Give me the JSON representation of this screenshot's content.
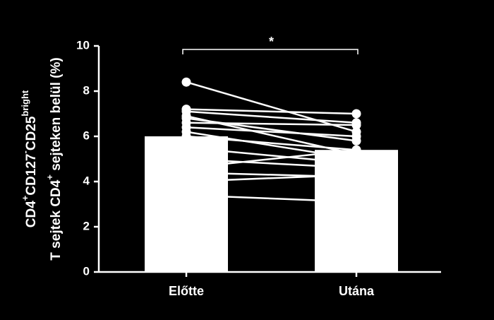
{
  "chart_data": {
    "type": "bar",
    "categories": [
      "Előtte",
      "Utána"
    ],
    "values": [
      6.0,
      5.4
    ],
    "color": "#ffffff",
    "paired_values": [
      [
        8.4,
        6.2
      ],
      [
        7.2,
        7.0
      ],
      [
        7.1,
        6.6
      ],
      [
        6.9,
        5.2
      ],
      [
        6.8,
        5.8
      ],
      [
        6.6,
        6.5
      ],
      [
        6.4,
        6.0
      ],
      [
        6.2,
        5.0
      ],
      [
        6.0,
        5.4
      ],
      [
        5.5,
        4.8
      ],
      [
        5.0,
        4.6
      ],
      [
        4.6,
        5.4
      ],
      [
        4.4,
        4.2
      ],
      [
        4.0,
        4.3
      ],
      [
        3.4,
        3.1
      ]
    ],
    "ylim": [
      0,
      10
    ],
    "yticks": [
      0,
      2,
      4,
      6,
      8,
      10
    ],
    "ylabel": [
      [
        {
          "text": "CD4"
        },
        {
          "sup": "+"
        },
        {
          "text": "CD127"
        },
        {
          "sup": "-"
        },
        {
          "text": "CD25"
        },
        {
          "sup": "bright"
        }
      ],
      [
        {
          "text": "T sejtek CD4"
        },
        {
          "sup": "+"
        },
        {
          "text": " sejteken belül (%)"
        }
      ]
    ],
    "annotation": "*"
  }
}
